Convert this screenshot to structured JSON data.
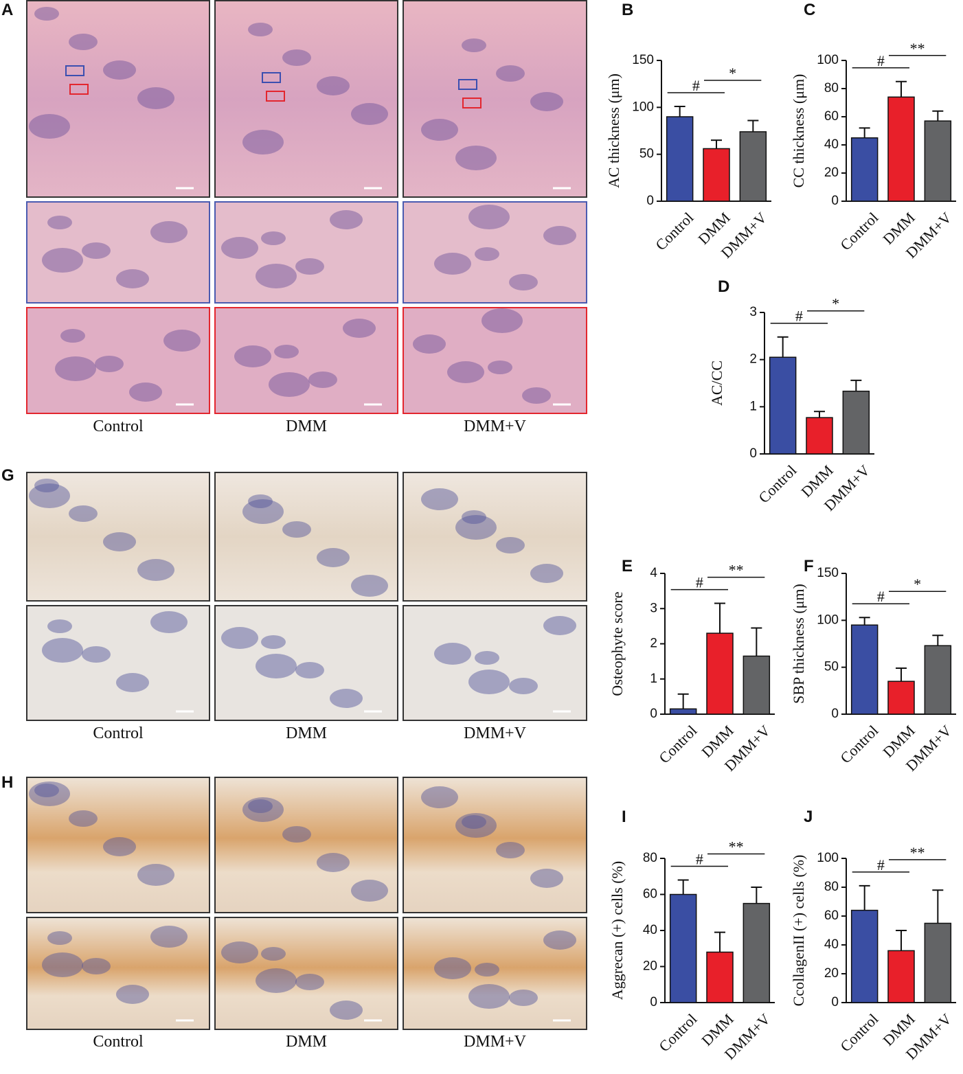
{
  "panels": [
    {
      "label": "A",
      "captions": [
        "Control",
        "DMM",
        "DMM+V"
      ]
    },
    {
      "label": "G",
      "captions": [
        "Control",
        "DMM",
        "DMM+V"
      ]
    },
    {
      "label": "H",
      "captions": [
        "Control",
        "DMM",
        "DMM+V"
      ]
    }
  ],
  "chart_data": [
    {
      "type": "bar",
      "label": "B",
      "y_label": "AC thickness (μm)",
      "categories": [
        "Control",
        "DMM",
        "DMM+V"
      ],
      "values": [
        90,
        56,
        74
      ],
      "errors": [
        11,
        9,
        12
      ],
      "colors": [
        "#3a4ea3",
        "#e8202a",
        "#636466"
      ],
      "ylim": [
        0,
        150
      ],
      "yticks": [
        0,
        50,
        100,
        150
      ],
      "annotations": [
        "#",
        "*"
      ]
    },
    {
      "type": "bar",
      "label": "C",
      "y_label": "CC thickness (μm)",
      "categories": [
        "Control",
        "DMM",
        "DMM+V"
      ],
      "values": [
        45,
        74,
        57
      ],
      "errors": [
        7,
        11,
        7
      ],
      "colors": [
        "#3a4ea3",
        "#e8202a",
        "#636466"
      ],
      "ylim": [
        0,
        100
      ],
      "yticks": [
        0,
        20,
        40,
        60,
        80,
        100
      ],
      "annotations": [
        "#",
        "**"
      ]
    },
    {
      "type": "bar",
      "label": "D",
      "y_label": "AC/CC",
      "categories": [
        "Control",
        "DMM",
        "DMM+V"
      ],
      "values": [
        2.05,
        0.77,
        1.33
      ],
      "errors": [
        0.43,
        0.13,
        0.23
      ],
      "colors": [
        "#3a4ea3",
        "#e8202a",
        "#636466"
      ],
      "ylim": [
        0,
        3
      ],
      "yticks": [
        0,
        1,
        2,
        3
      ],
      "annotations": [
        "#",
        "*"
      ]
    },
    {
      "type": "bar",
      "label": "E",
      "y_label": "Osteophyte score",
      "categories": [
        "Control",
        "DMM",
        "DMM+V"
      ],
      "values": [
        0.15,
        2.3,
        1.65
      ],
      "errors": [
        0.42,
        0.85,
        0.8
      ],
      "colors": [
        "#3a4ea3",
        "#e8202a",
        "#636466"
      ],
      "ylim": [
        0,
        4
      ],
      "yticks": [
        0,
        1,
        2,
        3,
        4
      ],
      "annotations": [
        "#",
        "**"
      ]
    },
    {
      "type": "bar",
      "label": "F",
      "y_label": "SBP thickness (μm)",
      "categories": [
        "Control",
        "DMM",
        "DMM+V"
      ],
      "values": [
        95,
        35,
        73
      ],
      "errors": [
        8,
        14,
        11
      ],
      "colors": [
        "#3a4ea3",
        "#e8202a",
        "#636466"
      ],
      "ylim": [
        0,
        150
      ],
      "yticks": [
        0,
        50,
        100,
        150
      ],
      "annotations": [
        "#",
        "*"
      ]
    },
    {
      "type": "bar",
      "label": "I",
      "y_label": "Aggrecan (+) cells (%)",
      "categories": [
        "Control",
        "DMM",
        "DMM+V"
      ],
      "values": [
        60,
        28,
        55
      ],
      "errors": [
        8,
        11,
        9
      ],
      "colors": [
        "#3a4ea3",
        "#e8202a",
        "#636466"
      ],
      "ylim": [
        0,
        80
      ],
      "yticks": [
        0,
        20,
        40,
        60,
        80
      ],
      "annotations": [
        "#",
        "**"
      ]
    },
    {
      "type": "bar",
      "label": "J",
      "y_label": "CcollagenII (+) cells (%)",
      "categories": [
        "Control",
        "DMM",
        "DMM+V"
      ],
      "values": [
        64,
        36,
        55
      ],
      "errors": [
        17,
        14,
        23
      ],
      "colors": [
        "#3a4ea3",
        "#e8202a",
        "#636466"
      ],
      "ylim": [
        0,
        100
      ],
      "yticks": [
        0,
        20,
        40,
        60,
        80,
        100
      ],
      "annotations": [
        "#",
        "**"
      ]
    }
  ]
}
